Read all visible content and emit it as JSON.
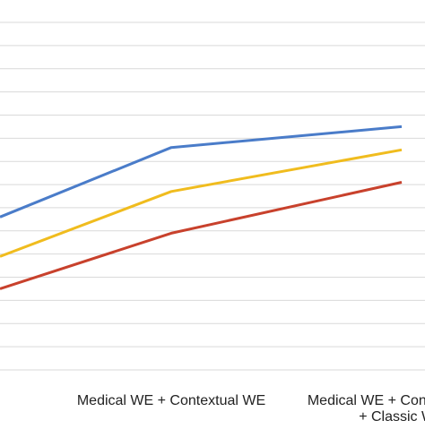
{
  "chart_data": {
    "type": "line",
    "categories": [
      "",
      "Medical WE + Contextual WE",
      "Medical WE + Contextual WE + Classic WE"
    ],
    "category_label_lines": [
      [
        ""
      ],
      [
        "Medical WE + Contextual WE"
      ],
      [
        "Medical WE + Contextual WE",
        "+ Classic WE"
      ]
    ],
    "series": [
      {
        "color": "#4a7cc9",
        "values": [
          0.63,
          0.78,
          0.825
        ]
      },
      {
        "color": "#f0bc1e",
        "values": [
          0.545,
          0.685,
          0.775
        ]
      },
      {
        "color": "#c8412c",
        "values": [
          0.475,
          0.595,
          0.705
        ]
      }
    ],
    "ylim": [
      0.3,
      1.05
    ],
    "grid": true,
    "legend": "none"
  }
}
